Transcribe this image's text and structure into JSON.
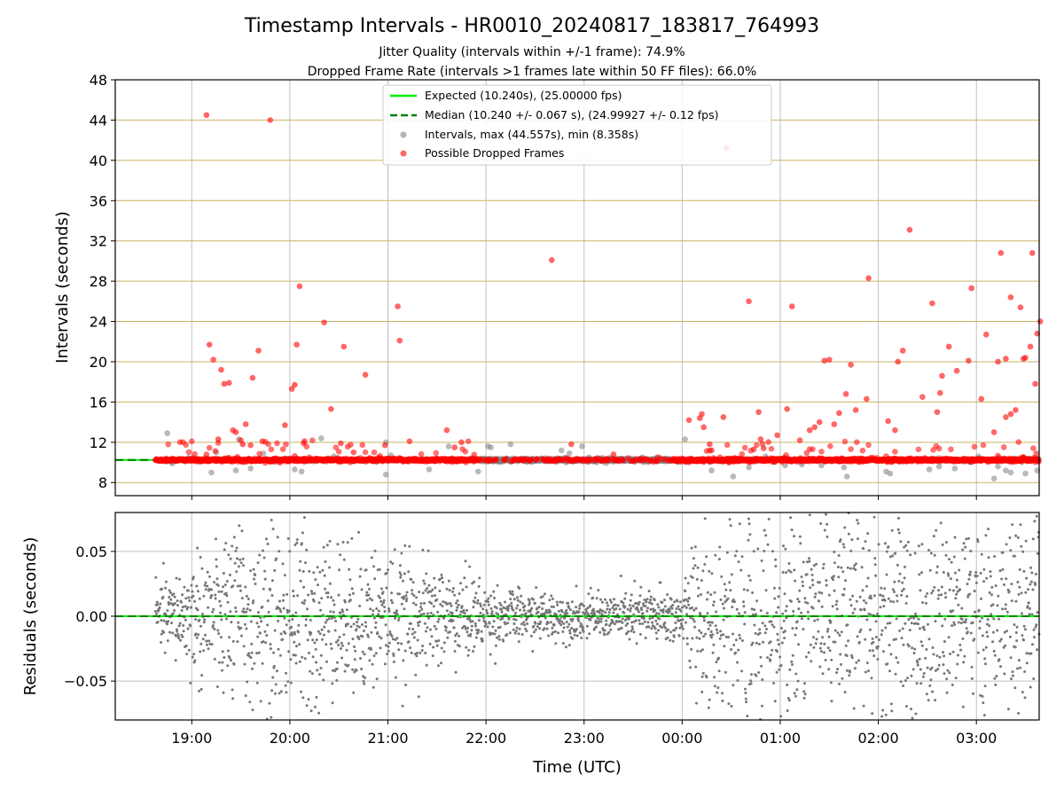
{
  "chart_data": [
    {
      "type": "scatter",
      "title": "Timestamp Intervals - HR0010_20240817_183817_764993",
      "subtitle_lines": [
        "Jitter Quality (intervals within +/-1 frame): 74.9%",
        "Dropped Frame Rate (intervals >1 frames late within 50 FF files): 66.0%"
      ],
      "ylabel": "Intervals (seconds)",
      "ylim": [
        6.7,
        48
      ],
      "yticks": [
        8,
        12,
        16,
        20,
        24,
        28,
        32,
        36,
        40,
        44,
        48
      ],
      "xlim_hours": [
        18.22,
        27.64
      ],
      "xgrid_hours": [
        19,
        20,
        21,
        22,
        23,
        24,
        25,
        26,
        27
      ],
      "hgrid_color": "#c8b463",
      "legend_position": "top-center",
      "legend": [
        {
          "label": "Expected (10.240s), (25.00000 fps)",
          "kind": "solid-line",
          "color": "#00ee00"
        },
        {
          "label": "Median (10.240 +/- 0.067 s), (24.99927 +/- 0.12 fps)",
          "kind": "dashed-line",
          "color": "#008000"
        },
        {
          "label": "Intervals, max (44.557s), min (8.358s)",
          "kind": "marker",
          "color": "#808080"
        },
        {
          "label": "Possible Dropped Frames",
          "kind": "marker",
          "color": "#ff0000"
        }
      ],
      "expected_interval": 10.24,
      "median_interval": 10.24,
      "series": [
        {
          "name": "Possible Dropped Frames",
          "color": "#ff0000",
          "x_hours": [
            19.15,
            19.18,
            19.22,
            19.3,
            19.33,
            19.38,
            19.42,
            19.45,
            19.5,
            19.52,
            19.55,
            19.62,
            19.68,
            19.8,
            19.95,
            20.15,
            20.35,
            20.55,
            20.65,
            20.77,
            20.97,
            21.1,
            21.12,
            21.22,
            21.6,
            21.68,
            21.75,
            20.02,
            20.05,
            20.07,
            20.1,
            20.42,
            20.52,
            22.67,
            22.87,
            23.3,
            23.75,
            24.07,
            24.18,
            24.2,
            24.22,
            24.28,
            24.3,
            24.42,
            24.45,
            24.68,
            24.73,
            24.78,
            24.8,
            24.83,
            24.97,
            25.07,
            25.12,
            25.2,
            25.3,
            25.35,
            25.4,
            25.45,
            25.5,
            25.55,
            25.6,
            25.67,
            25.72,
            25.77,
            25.88,
            25.9,
            26.1,
            26.17,
            26.2,
            26.25,
            26.32,
            26.45,
            26.55,
            26.6,
            26.63,
            26.65,
            26.72,
            26.8,
            26.92,
            26.95,
            27.05,
            27.1,
            27.18,
            27.22,
            27.25,
            27.3,
            27.35,
            27.4,
            27.45,
            27.5,
            27.55,
            27.6,
            27.62,
            27.65,
            27.48,
            27.57,
            27.35,
            27.3,
            19.72,
            19.6,
            19.27
          ],
          "y_intervals": [
            44.5,
            21.7,
            20.2,
            19.2,
            17.8,
            17.9,
            13.2,
            13.0,
            12.2,
            11.8,
            13.8,
            18.4,
            21.1,
            44.0,
            13.7,
            12.1,
            23.9,
            21.5,
            11.0,
            18.7,
            11.7,
            25.5,
            22.1,
            12.1,
            13.2,
            11.5,
            12.0,
            17.3,
            17.7,
            21.7,
            27.5,
            15.3,
            11.9,
            30.1,
            11.8,
            10.8,
            10.5,
            14.2,
            14.4,
            14.8,
            13.5,
            11.8,
            11.2,
            14.5,
            41.2,
            26.0,
            11.3,
            15.0,
            12.3,
            11.4,
            12.7,
            15.3,
            25.5,
            12.2,
            13.2,
            13.5,
            14.0,
            20.1,
            20.2,
            13.8,
            14.9,
            16.8,
            19.7,
            15.2,
            16.3,
            28.3,
            14.1,
            13.2,
            20.0,
            21.1,
            33.1,
            16.5,
            25.8,
            15.0,
            16.9,
            18.6,
            21.5,
            19.1,
            20.1,
            27.3,
            16.3,
            22.7,
            13.0,
            20.0,
            30.8,
            14.5,
            14.8,
            15.2,
            25.4,
            20.4,
            21.5,
            17.8,
            22.8,
            24.0,
            20.3,
            30.8,
            26.4,
            20.3,
            12.1,
            11.7,
            12.3
          ]
        },
        {
          "name": "Intervals, max (44.557s), min (8.358s)",
          "color": "#808080",
          "x_hours": [
            18.75,
            18.8,
            19.2,
            19.25,
            19.45,
            19.48,
            19.6,
            19.73,
            20.05,
            20.12,
            20.32,
            20.45,
            20.98,
            20.98,
            21.03,
            21.05,
            21.42,
            21.62,
            21.65,
            21.92,
            22.02,
            22.05,
            22.25,
            22.75,
            22.77,
            22.85,
            22.98,
            23.05,
            23.17,
            24.03,
            24.3,
            24.52,
            24.68,
            24.85,
            25.05,
            25.22,
            25.42,
            25.65,
            25.68,
            26.08,
            26.12,
            26.52,
            26.62,
            26.78,
            27.02,
            27.18,
            27.22,
            27.3,
            27.35,
            27.5,
            27.62
          ],
          "y_intervals": [
            12.9,
            9.9,
            9.0,
            11.0,
            9.2,
            12.3,
            9.4,
            10.9,
            9.3,
            9.1,
            12.4,
            10.6,
            12.0,
            8.8,
            10.7,
            10.3,
            9.3,
            11.6,
            10.4,
            9.1,
            11.6,
            11.5,
            11.8,
            10.2,
            11.2,
            10.9,
            11.6,
            10.5,
            10.4,
            12.3,
            9.2,
            8.6,
            9.5,
            10.6,
            9.7,
            9.8,
            9.7,
            9.5,
            8.6,
            9.1,
            8.9,
            9.3,
            9.6,
            9.4,
            10.6,
            8.4,
            9.6,
            9.2,
            9.0,
            8.9,
            9.2
          ]
        }
      ]
    },
    {
      "type": "scatter",
      "xlabel": "Time (UTC)",
      "ylabel": "Residuals (seconds)",
      "ylim": [
        -0.08,
        0.08
      ],
      "yticks": [
        0.05,
        0.0,
        -0.05
      ],
      "ytick_labels": [
        "0.05",
        "0.00",
        "−0.05"
      ],
      "xlim_hours": [
        18.22,
        27.64
      ],
      "xticks_hours": [
        19,
        20,
        21,
        22,
        23,
        24,
        25,
        26,
        27
      ],
      "xtick_labels": [
        "19:00",
        "20:00",
        "21:00",
        "22:00",
        "23:00",
        "00:00",
        "01:00",
        "02:00",
        "03:00"
      ],
      "grid": true,
      "zero_line_color": "#00ee00",
      "point_color": "#777777",
      "residual_envelope": {
        "x_hours": [
          18.7,
          19.2,
          19.7,
          20.2,
          20.7,
          21.2,
          21.7,
          22.2,
          22.7,
          23.2,
          23.7,
          24.0,
          24.2,
          24.7,
          25.2,
          25.7,
          26.2,
          26.7,
          27.2,
          27.6
        ],
        "spread_seconds": [
          0.012,
          0.03,
          0.04,
          0.038,
          0.03,
          0.022,
          0.018,
          0.01,
          0.009,
          0.008,
          0.012,
          0.01,
          0.04,
          0.045,
          0.045,
          0.045,
          0.045,
          0.045,
          0.045,
          0.045
        ]
      }
    }
  ]
}
